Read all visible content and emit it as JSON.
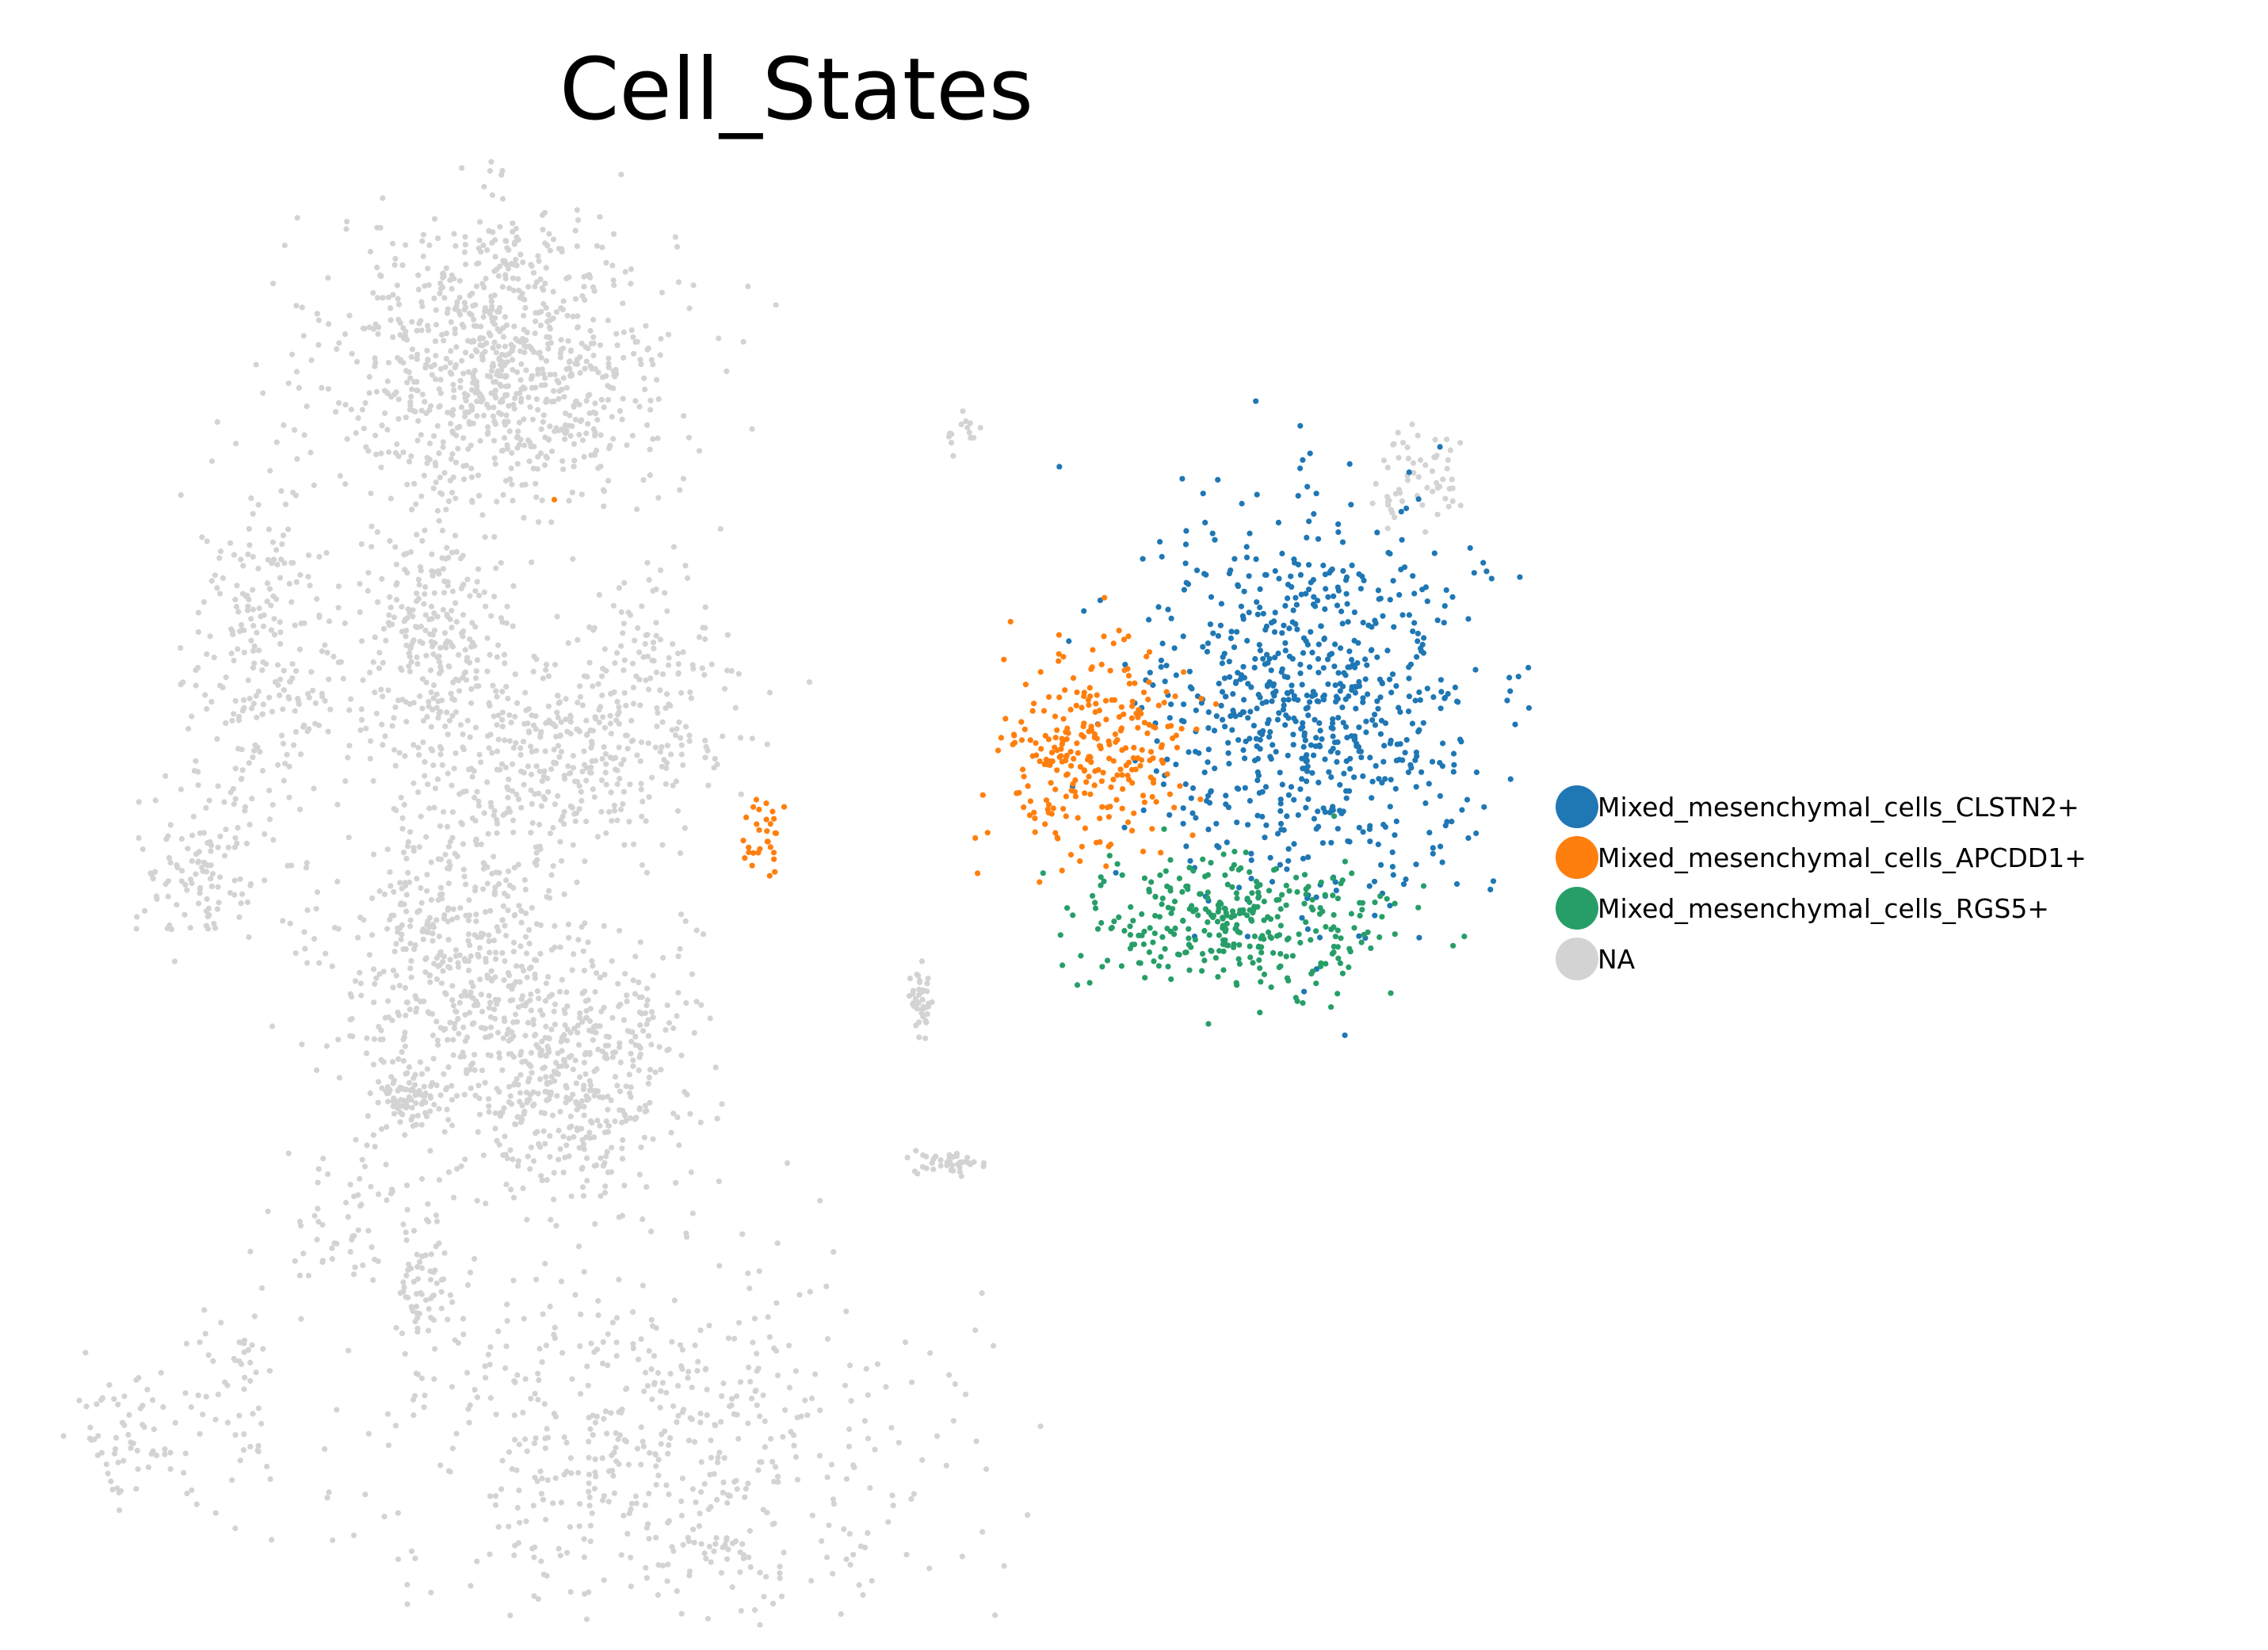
{
  "chart_data": {
    "type": "scatter",
    "title": "Cell_States",
    "xlabel": "",
    "ylabel": "",
    "axes_visible": false,
    "grid": false,
    "legend_position": "right",
    "series": [
      {
        "name": "Mixed_mesenchymal_cells_CLSTN2+",
        "color": "#1f77b4",
        "clusters": [
          {
            "center": [
              0.72,
              0.52
            ],
            "spread": [
              0.065,
              0.085
            ],
            "n": 760
          }
        ]
      },
      {
        "name": "Mixed_mesenchymal_cells_APCDD1+",
        "color": "#ff7f0e",
        "clusters": [
          {
            "center": [
              0.555,
              0.48
            ],
            "spread": [
              0.035,
              0.045
            ],
            "n": 280
          },
          {
            "center": [
              0.3,
              0.4
            ],
            "spread": [
              0.008,
              0.022
            ],
            "n": 30
          },
          {
            "center": [
              0.14,
              0.7
            ],
            "spread": [
              0.001,
              0.001
            ],
            "n": 1
          }
        ]
      },
      {
        "name": "Mixed_mesenchymal_cells_RGS5+",
        "color": "#279e68",
        "clusters": [
          {
            "center": [
              0.66,
              0.33
            ],
            "spread": [
              0.06,
              0.03
            ],
            "n": 330
          }
        ]
      },
      {
        "name": "NA",
        "color": "#d3d3d3",
        "clusters": [
          {
            "center": [
              0.1,
              0.93
            ],
            "spread": [
              0.01,
              0.005
            ],
            "n": 12
          },
          {
            "center": [
              0.1,
              0.82
            ],
            "spread": [
              0.065,
              0.065
            ],
            "n": 900
          },
          {
            "center": [
              -0.08,
              0.56
            ],
            "spread": [
              0.03,
              0.085
            ],
            "n": 260
          },
          {
            "center": [
              -0.13,
              0.38
            ],
            "spread": [
              0.025,
              0.035
            ],
            "n": 110
          },
          {
            "center": [
              0.05,
              0.58
            ],
            "spread": [
              0.03,
              0.045
            ],
            "n": 240
          },
          {
            "center": [
              0.13,
              0.47
            ],
            "spread": [
              0.065,
              0.05
            ],
            "n": 380
          },
          {
            "center": [
              0.06,
              0.3
            ],
            "spread": [
              0.045,
              0.06
            ],
            "n": 420
          },
          {
            "center": [
              0.21,
              0.55
            ],
            "spread": [
              0.03,
              0.045
            ],
            "n": 120
          },
          {
            "center": [
              0.03,
              0.18
            ],
            "spread": [
              0.012,
              0.015
            ],
            "n": 90
          },
          {
            "center": [
              0.15,
              0.2
            ],
            "spread": [
              0.045,
              0.06
            ],
            "n": 520
          },
          {
            "center": [
              0.42,
              0.26
            ],
            "spread": [
              0.004,
              0.015
            ],
            "n": 40
          },
          {
            "center": [
              0.45,
              0.76
            ],
            "spread": [
              0.008,
              0.012
            ],
            "n": 14
          },
          {
            "center": [
              0.8,
              0.72
            ],
            "spread": [
              0.02,
              0.02
            ],
            "n": 60
          },
          {
            "center": [
              0.44,
              0.12
            ],
            "spread": [
              0.012,
              0.005
            ],
            "n": 40
          },
          {
            "center": [
              0.04,
              0.01
            ],
            "spread": [
              0.01,
              0.04
            ],
            "n": 70
          },
          {
            "center": [
              -0.02,
              0.07
            ],
            "spread": [
              0.025,
              0.03
            ],
            "n": 60
          },
          {
            "center": [
              -0.18,
              -0.12
            ],
            "spread": [
              0.03,
              0.03
            ],
            "n": 70
          },
          {
            "center": [
              -0.1,
              -0.08
            ],
            "spread": [
              0.015,
              0.05
            ],
            "n": 50
          },
          {
            "center": [
              0.22,
              -0.12
            ],
            "spread": [
              0.11,
              0.075
            ],
            "n": 560
          },
          {
            "center": [
              0.27,
              -0.22
            ],
            "spread": [
              0.012,
              0.012
            ],
            "n": 20
          }
        ]
      }
    ]
  }
}
